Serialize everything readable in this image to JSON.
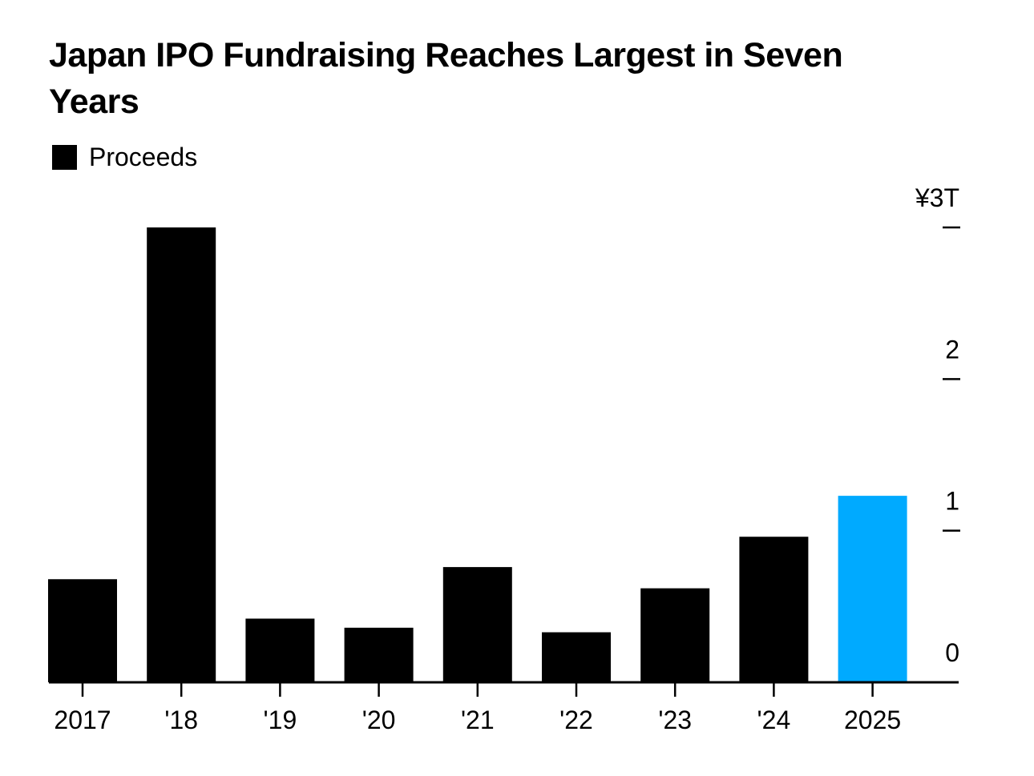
{
  "title": "Japan IPO Fundraising Reaches Largest in Seven Years",
  "legend": {
    "label": "Proceeds"
  },
  "colors": {
    "default": "#000000",
    "highlight": "#00AAFF"
  },
  "chart_data": {
    "type": "bar",
    "title": "Japan IPO Fundraising Reaches Largest in Seven Years",
    "xlabel": "",
    "ylabel": "",
    "categories": [
      "2017",
      "'18",
      "'19",
      "'20",
      "'21",
      "'22",
      "'23",
      "'24",
      "2025"
    ],
    "series": [
      {
        "name": "Proceeds",
        "unit": "¥ trillion",
        "values": [
          0.68,
          3.0,
          0.42,
          0.36,
          0.76,
          0.33,
          0.62,
          0.96,
          1.23
        ]
      }
    ],
    "highlight_category": "2025",
    "ylim": [
      0,
      3
    ],
    "yticks": [
      0,
      1,
      2,
      3
    ],
    "ytick_labels": [
      "0",
      "1",
      "2",
      "¥3T"
    ],
    "yaxis_position": "right",
    "grid": false,
    "legend_position": "top-left"
  }
}
